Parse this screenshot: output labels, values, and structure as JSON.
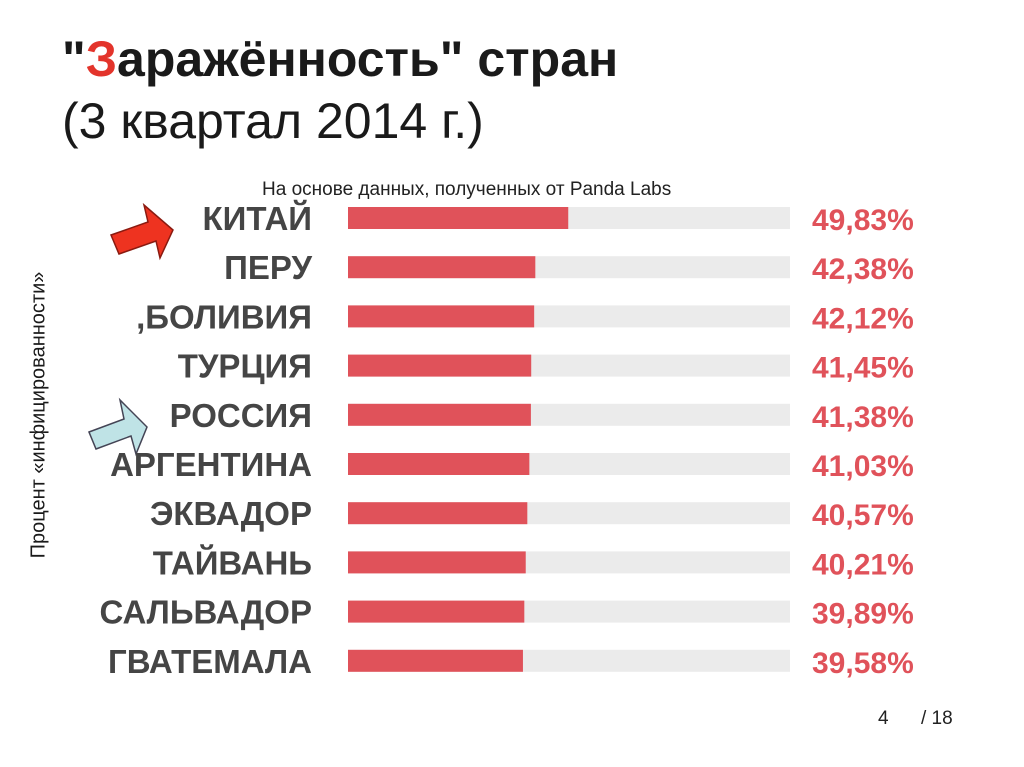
{
  "slide": {
    "title_quote_open": "\"",
    "title_accent_letter": "З",
    "title_rest": "аражённость\" стран",
    "title_line2": "(3 квартал 2014 г.)",
    "page_number": "4",
    "page_total": "/ 18"
  },
  "colors": {
    "bar": "#e0525a",
    "track": "#ebebeb",
    "label": "#454545",
    "value": "#e0525a",
    "arrow_red": "#ee3320",
    "arrow_blue": "#bfe3e6"
  },
  "chart_data": {
    "type": "bar",
    "orientation": "horizontal",
    "subtitle": "На основе данных, полученных от Panda Labs",
    "ylabel": "Процент «инфицированности»",
    "xlim": [
      0,
      100
    ],
    "categories": [
      "КИТАЙ",
      "ПЕРУ",
      ",БОЛИВИЯ",
      "ТУРЦИЯ",
      "РОССИЯ",
      "АРГЕНТИНА",
      "ЭКВАДОР",
      "ТАЙВАНЬ",
      "САЛЬВАДОР",
      "ГВАТЕМАЛА"
    ],
    "values": [
      49.83,
      42.38,
      42.12,
      41.45,
      41.38,
      41.03,
      40.57,
      40.21,
      39.89,
      39.58
    ],
    "value_labels": [
      "49,83%",
      "42,38%",
      "42,12%",
      "41,45%",
      "41,38%",
      "41,03%",
      "40,57%",
      "40,21%",
      "39,89%",
      "39,58%"
    ]
  }
}
